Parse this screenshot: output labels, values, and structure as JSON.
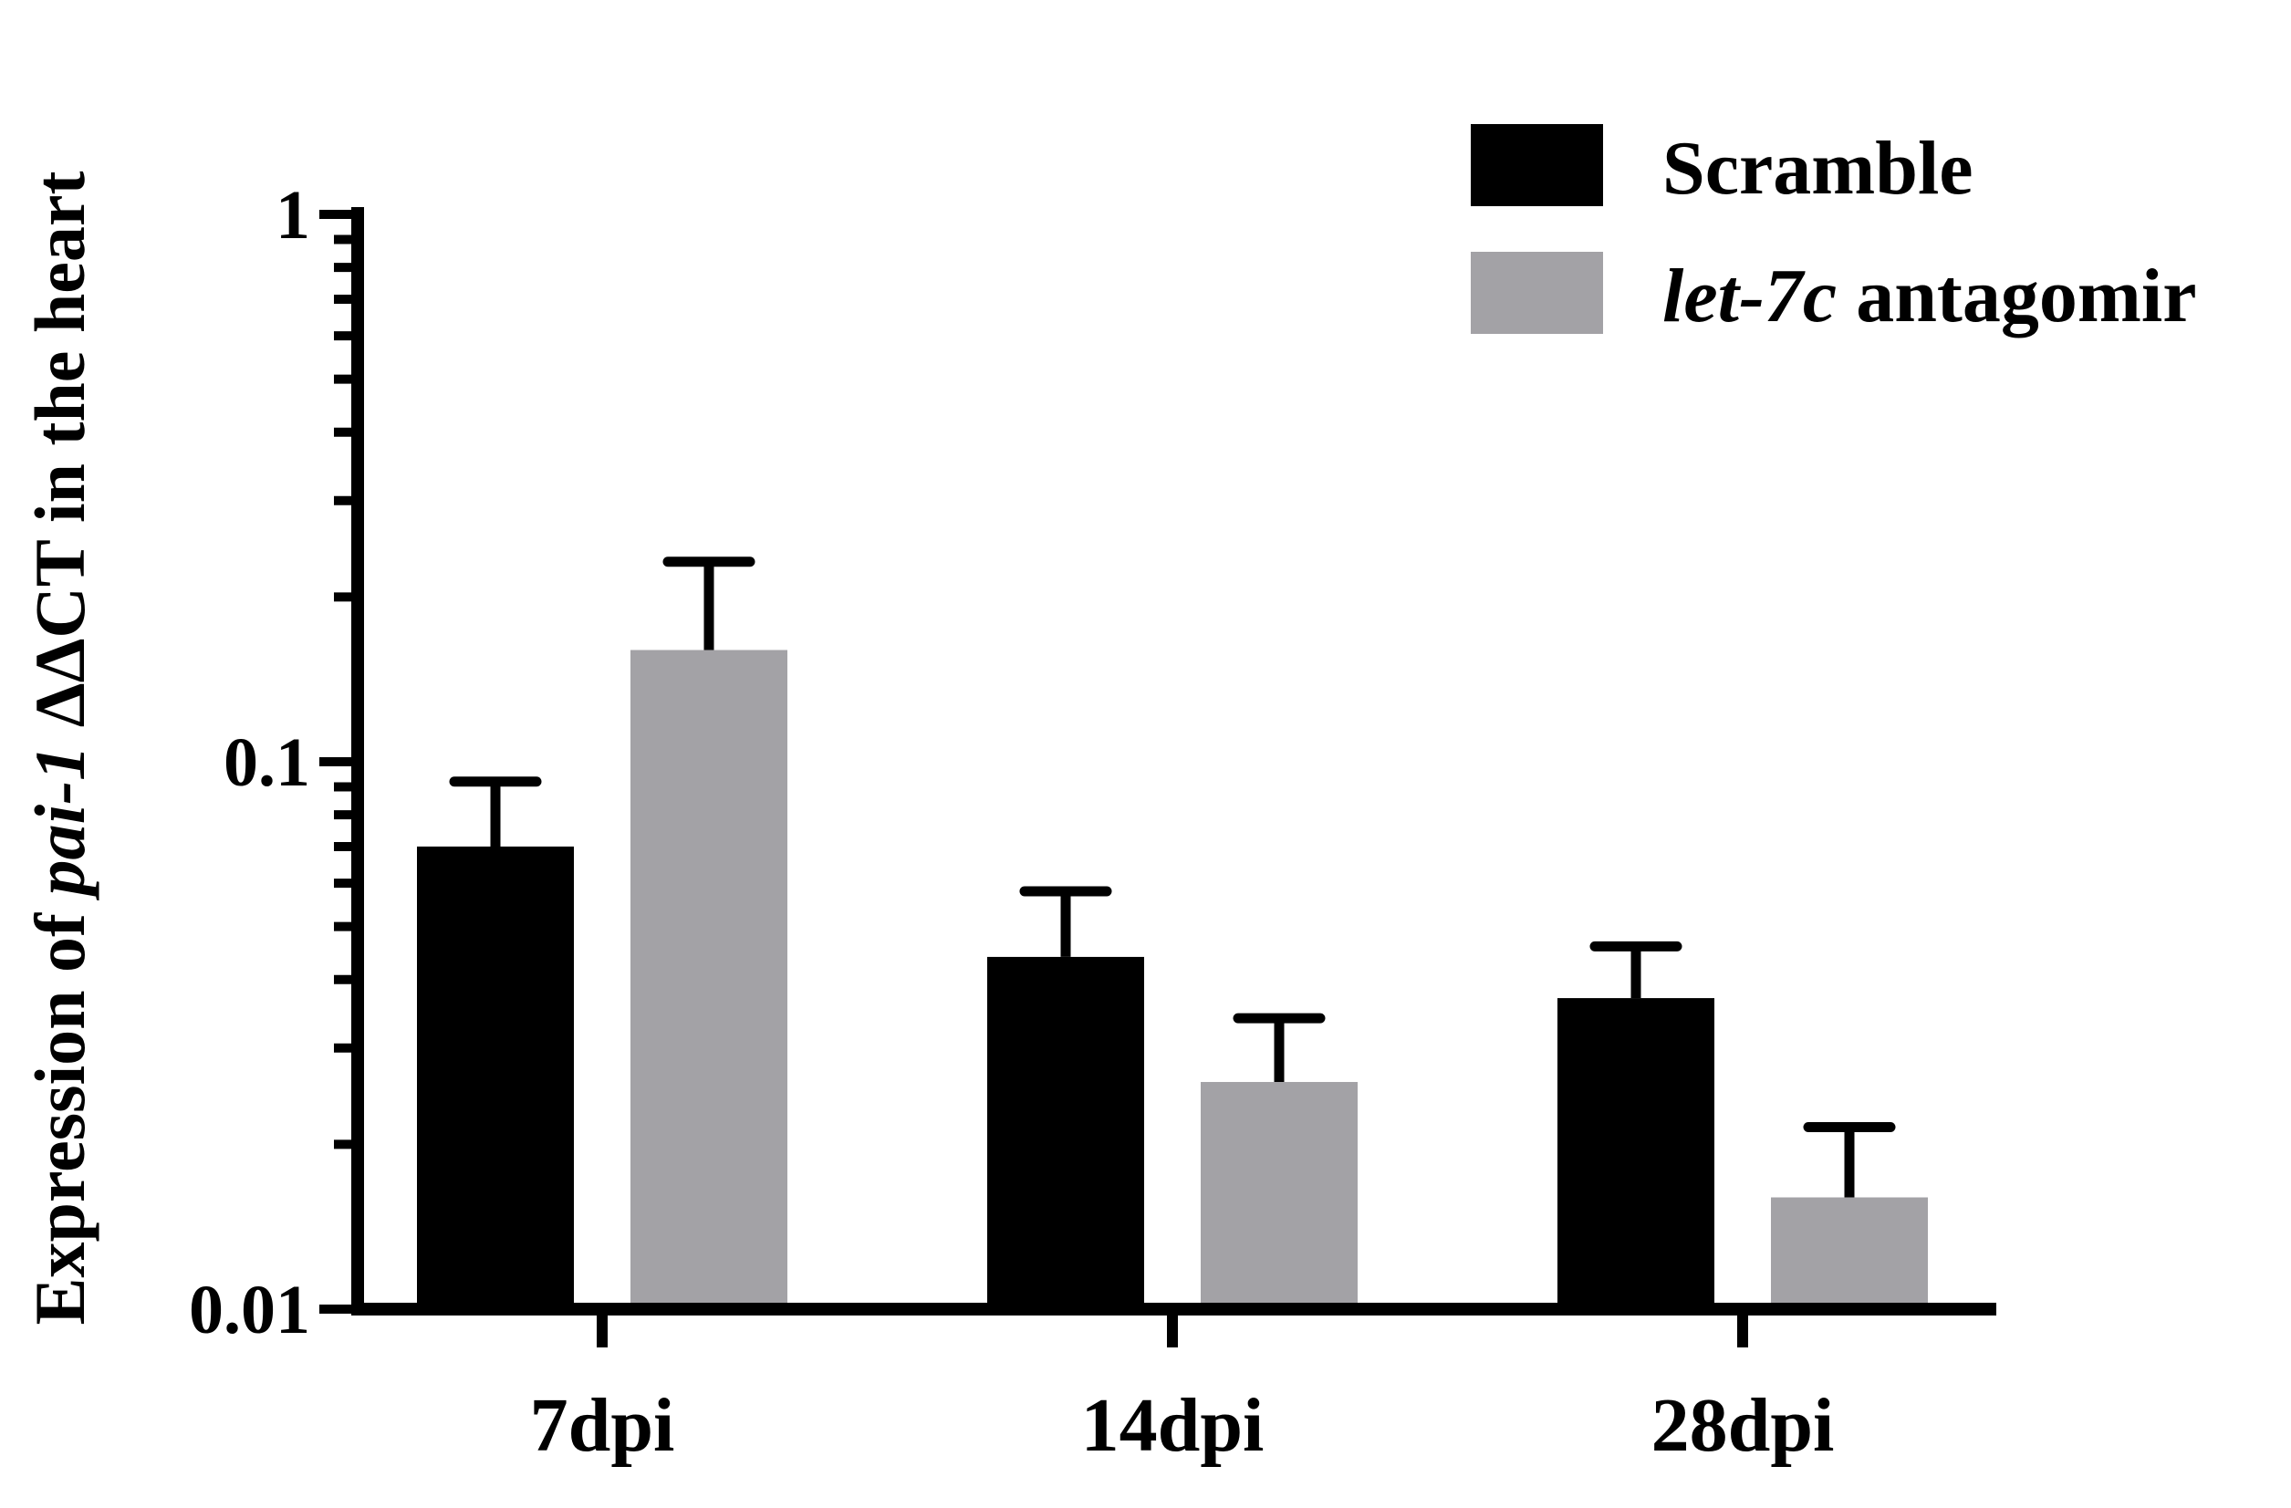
{
  "chart_data": {
    "type": "bar",
    "categories": [
      "7dpi",
      "14dpi",
      "28dpi"
    ],
    "series": [
      {
        "name": "Scramble",
        "color": "#000000",
        "values": [
          0.07,
          0.044,
          0.037
        ],
        "errors": [
          0.022,
          0.014,
          0.009
        ]
      },
      {
        "name": "let-7c antagomir",
        "name_italic": "let-7c",
        "name_rest": " antagomir",
        "color": "#a3a2a6",
        "values": [
          0.16,
          0.026,
          0.016
        ],
        "errors": [
          0.072,
          0.008,
          0.0055
        ]
      }
    ],
    "ylabel": {
      "prefix": "Expression of ",
      "italic": "pai-1",
      "suffix": " ΔΔCT  in the heart"
    },
    "yscale": "log",
    "ylim": [
      0.01,
      1
    ],
    "yticks": [
      {
        "value": 0.01,
        "label": "0.01"
      },
      {
        "value": 0.1,
        "label": "0.1"
      },
      {
        "value": 1,
        "label": "1"
      }
    ],
    "grid": false,
    "legend_position": "top-right"
  }
}
